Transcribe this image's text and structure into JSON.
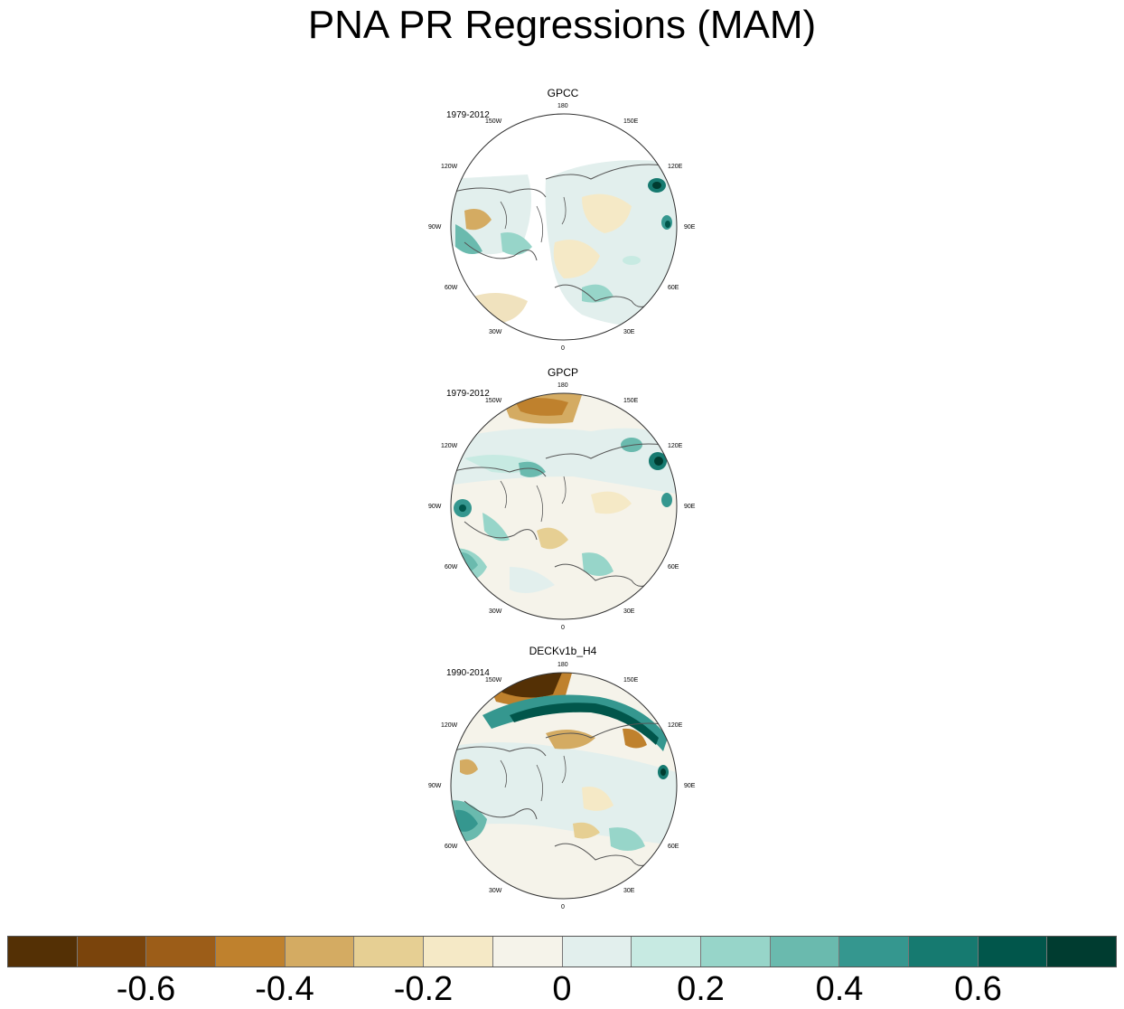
{
  "title": "PNA PR Regressions (MAM)",
  "panels": [
    {
      "name": "GPCC",
      "period": "1979-2012"
    },
    {
      "name": "GPCP",
      "period": "1979-2012"
    },
    {
      "name": "DECKv1b_H4",
      "period": "1990-2014"
    }
  ],
  "longitude_labels": [
    "180",
    "150E",
    "120E",
    "90E",
    "60E",
    "30E",
    "0",
    "30W",
    "60W",
    "90W",
    "120W",
    "150W"
  ],
  "colorbar": {
    "colors": [
      "#543005",
      "#7a440c",
      "#9c5d18",
      "#bf812d",
      "#d4ab62",
      "#e6cf93",
      "#f5e9c6",
      "#f5f3ea",
      "#e2efed",
      "#c7eae2",
      "#97d5c9",
      "#6abaae",
      "#35978f",
      "#167a70",
      "#01564b",
      "#003c30"
    ],
    "tick_labels": [
      "-0.6",
      "-0.4",
      "-0.2",
      "0",
      "0.2",
      "0.4",
      "0.6"
    ],
    "tick_values": [
      -0.6,
      -0.4,
      -0.2,
      0,
      0.2,
      0.4,
      0.6
    ]
  }
}
